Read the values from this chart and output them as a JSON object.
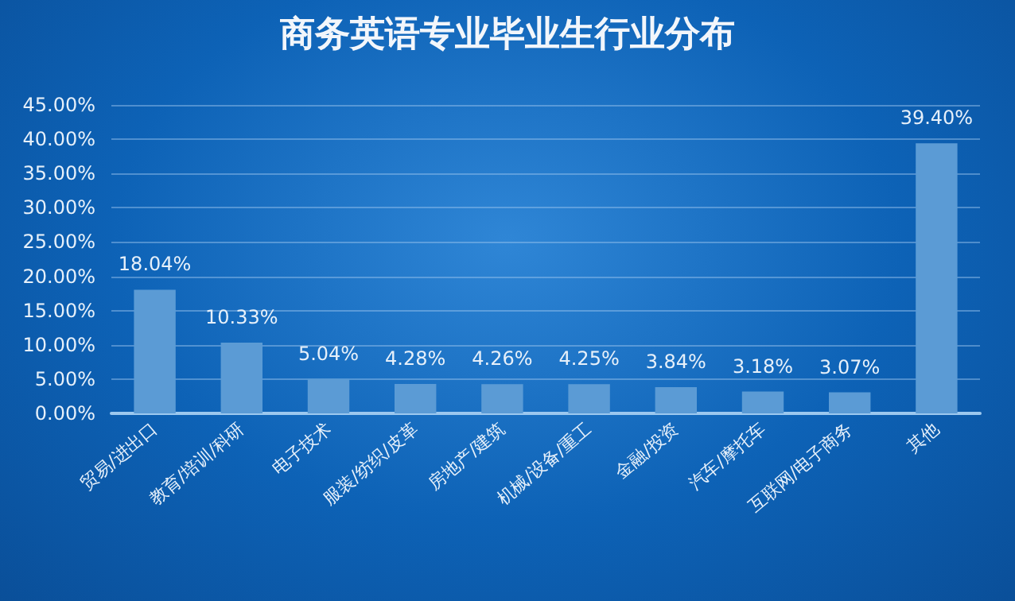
{
  "chart_data": {
    "type": "bar",
    "title": "商务英语专业毕业生行业分布",
    "categories": [
      "贸易/进出口",
      "教育/培训/科研",
      "电子技术",
      "服装/纺织/皮革",
      "房地产/建筑",
      "机械/设备/重工",
      "金融/投资",
      "汽车/摩托车",
      "互联网/电子商务",
      "其他"
    ],
    "values": [
      18.04,
      10.33,
      5.04,
      4.28,
      4.26,
      4.25,
      3.84,
      3.18,
      3.07,
      39.4
    ],
    "value_labels": [
      "18.04%",
      "10.33%",
      "5.04%",
      "4.28%",
      "4.26%",
      "4.25%",
      "3.84%",
      "3.18%",
      "3.07%",
      "39.40%"
    ],
    "color": "#5b9bd5",
    "ylim": [
      0,
      45
    ],
    "yticks": [
      {
        "value": 0,
        "label": "0.00%"
      },
      {
        "value": 5,
        "label": "5.00%"
      },
      {
        "value": 10,
        "label": "10.00%"
      },
      {
        "value": 15,
        "label": "15.00%"
      },
      {
        "value": 20,
        "label": "20.00%"
      },
      {
        "value": 25,
        "label": "25.00%"
      },
      {
        "value": 30,
        "label": "30.00%"
      },
      {
        "value": 35,
        "label": "35.00%"
      },
      {
        "value": 40,
        "label": "40.00%"
      },
      {
        "value": 45,
        "label": "45.00%"
      }
    ],
    "grid": "y"
  }
}
